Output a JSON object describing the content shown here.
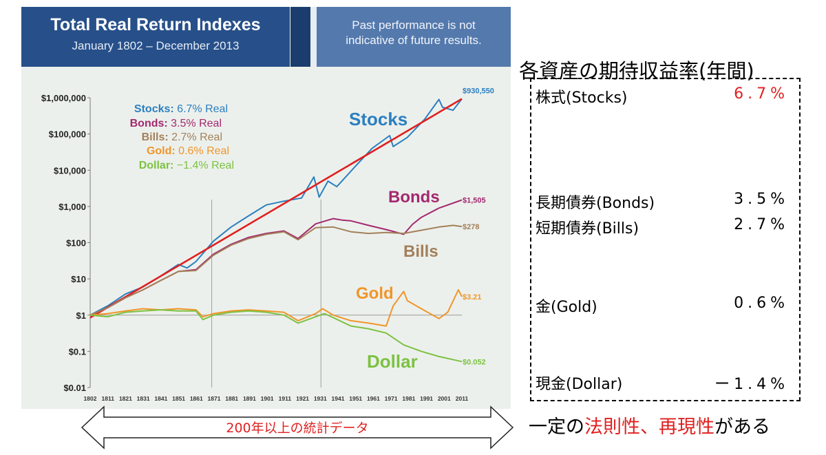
{
  "header": {
    "title": "Total Real Return Indexes",
    "subtitle": "January 1802 – December 2013",
    "disclaimer_line1": "Past performance is not",
    "disclaimer_line2": "indicative of future results."
  },
  "chart_data": {
    "type": "line",
    "title": "Total Real Return Indexes",
    "subtitle": "January 1802 – December 2013",
    "y_scale": "log",
    "ylim": [
      0.01,
      1000000
    ],
    "y_ticks": [
      {
        "value": 1000000,
        "label": "$1,000,000"
      },
      {
        "value": 100000,
        "label": "$100,000"
      },
      {
        "value": 10000,
        "label": "$10,000"
      },
      {
        "value": 1000,
        "label": "$1,000"
      },
      {
        "value": 100,
        "label": "$100"
      },
      {
        "value": 10,
        "label": "$10"
      },
      {
        "value": 1,
        "label": "$1"
      },
      {
        "value": 0.1,
        "label": "$0.1"
      },
      {
        "value": 0.01,
        "label": "$0.01"
      }
    ],
    "xlim": [
      1802,
      2013
    ],
    "x_ticks": [
      "1802",
      "1811",
      "1821",
      "1831",
      "1841",
      "1851",
      "1861",
      "1871",
      "1881",
      "1891",
      "1901",
      "1911",
      "1921",
      "1931",
      "1941",
      "1951",
      "1961",
      "1971",
      "1981",
      "1991",
      "2001",
      "2011"
    ],
    "vertical_lines": [
      1871,
      1933
    ],
    "legend": [
      {
        "name": "Stocks:",
        "rate": "6.7% Real",
        "color": "#2b7fc0"
      },
      {
        "name": "Bonds:",
        "rate": "3.5% Real",
        "color": "#a3286e"
      },
      {
        "name": "Bills:",
        "rate": "2.7% Real",
        "color": "#a3805a"
      },
      {
        "name": "Gold:",
        "rate": "0.6% Real",
        "color": "#f0952a"
      },
      {
        "name": "Dollar:",
        "rate": "−1.4% Real",
        "color": "#7cc242"
      }
    ],
    "series": [
      {
        "name": "Stocks",
        "color": "#2b7fc0",
        "end_label": "$930,550",
        "x": [
          1802,
          1812,
          1822,
          1832,
          1842,
          1852,
          1857,
          1862,
          1872,
          1882,
          1892,
          1902,
          1912,
          1922,
          1929,
          1932,
          1937,
          1942,
          1952,
          1962,
          1972,
          1974,
          1982,
          1992,
          2000,
          2002,
          2008,
          2013
        ],
        "y": [
          1,
          1.8,
          3.8,
          6,
          12,
          25,
          20,
          30,
          110,
          270,
          550,
          1100,
          1400,
          1700,
          6500,
          1800,
          5000,
          3500,
          12000,
          40000,
          90000,
          45000,
          80000,
          260000,
          900000,
          550000,
          450000,
          930550
        ]
      },
      {
        "name": "Trend",
        "color": "#e02020",
        "x": [
          1802,
          2013
        ],
        "y": [
          0.85,
          930550
        ]
      },
      {
        "name": "Bonds",
        "color": "#a3286e",
        "end_label": "$1,505",
        "x": [
          1802,
          1812,
          1822,
          1832,
          1842,
          1852,
          1862,
          1872,
          1882,
          1892,
          1902,
          1912,
          1920,
          1930,
          1940,
          1945,
          1950,
          1960,
          1970,
          1980,
          1985,
          1990,
          2000,
          2013
        ],
        "y": [
          1,
          1.6,
          3,
          5,
          9,
          16,
          18,
          48,
          90,
          140,
          180,
          210,
          130,
          330,
          460,
          420,
          400,
          300,
          230,
          170,
          320,
          500,
          900,
          1505
        ]
      },
      {
        "name": "Bills",
        "color": "#a3805a",
        "end_label": "$278",
        "x": [
          1802,
          1812,
          1822,
          1832,
          1842,
          1852,
          1862,
          1872,
          1882,
          1892,
          1902,
          1912,
          1920,
          1930,
          1940,
          1950,
          1960,
          1970,
          1980,
          1990,
          2000,
          2008,
          2013
        ],
        "y": [
          1,
          1.6,
          3,
          5,
          9,
          16,
          17,
          45,
          85,
          130,
          170,
          200,
          120,
          260,
          270,
          200,
          180,
          190,
          180,
          220,
          270,
          300,
          278
        ]
      },
      {
        "name": "Gold",
        "color": "#f0952a",
        "end_label": "$3.21",
        "x": [
          1802,
          1812,
          1822,
          1832,
          1842,
          1852,
          1862,
          1866,
          1872,
          1882,
          1892,
          1902,
          1912,
          1920,
          1930,
          1934,
          1940,
          1950,
          1960,
          1970,
          1974,
          1980,
          1982,
          1990,
          2000,
          2005,
          2011,
          2013
        ],
        "y": [
          1,
          1.1,
          1.3,
          1.5,
          1.4,
          1.5,
          1.4,
          0.9,
          1.1,
          1.3,
          1.4,
          1.3,
          1.2,
          0.7,
          1.1,
          1.5,
          1.0,
          0.7,
          0.6,
          0.5,
          1.8,
          4.5,
          2.5,
          1.5,
          0.8,
          1.2,
          5,
          3.21
        ]
      },
      {
        "name": "Dollar",
        "color": "#7cc242",
        "end_label": "$0.052",
        "x": [
          1802,
          1812,
          1822,
          1832,
          1842,
          1852,
          1862,
          1866,
          1872,
          1882,
          1892,
          1902,
          1912,
          1920,
          1930,
          1935,
          1940,
          1950,
          1960,
          1970,
          1980,
          1990,
          2000,
          2013
        ],
        "y": [
          1,
          0.9,
          1.2,
          1.3,
          1.4,
          1.3,
          1.3,
          0.75,
          1.0,
          1.2,
          1.3,
          1.2,
          1.0,
          0.6,
          0.9,
          1.1,
          0.85,
          0.5,
          0.42,
          0.32,
          0.15,
          0.1,
          0.072,
          0.052
        ]
      }
    ],
    "annotations": [
      {
        "text": "Stocks",
        "color": "#2b7fc0"
      },
      {
        "text": "Bonds",
        "color": "#a3286e"
      },
      {
        "text": "Bills",
        "color": "#a3805a"
      },
      {
        "text": "Gold",
        "color": "#f0952a"
      },
      {
        "text": "Dollar",
        "color": "#7cc242"
      }
    ]
  },
  "returns": {
    "title": "各資産の期待収益率(年間)",
    "rows": [
      {
        "name": "株式(Stocks)",
        "value": "6.7%",
        "color": "#e02020"
      },
      {
        "name": "長期債券(Bonds)",
        "value": "3.5%",
        "color": "#000000"
      },
      {
        "name": "短期債券(Bills)",
        "value": "2.7%",
        "color": "#000000"
      },
      {
        "name": "金(Gold)",
        "value": "0.6%",
        "color": "#000000"
      },
      {
        "name": "現金(Dollar)",
        "value": "ー1.4%",
        "color": "#000000"
      }
    ]
  },
  "arrow_label": "200年以上の統計データ",
  "bottom": {
    "part1": "一定の",
    "part2": "法則性",
    "part3": "、",
    "part4": "再現性",
    "part5": "がある"
  }
}
